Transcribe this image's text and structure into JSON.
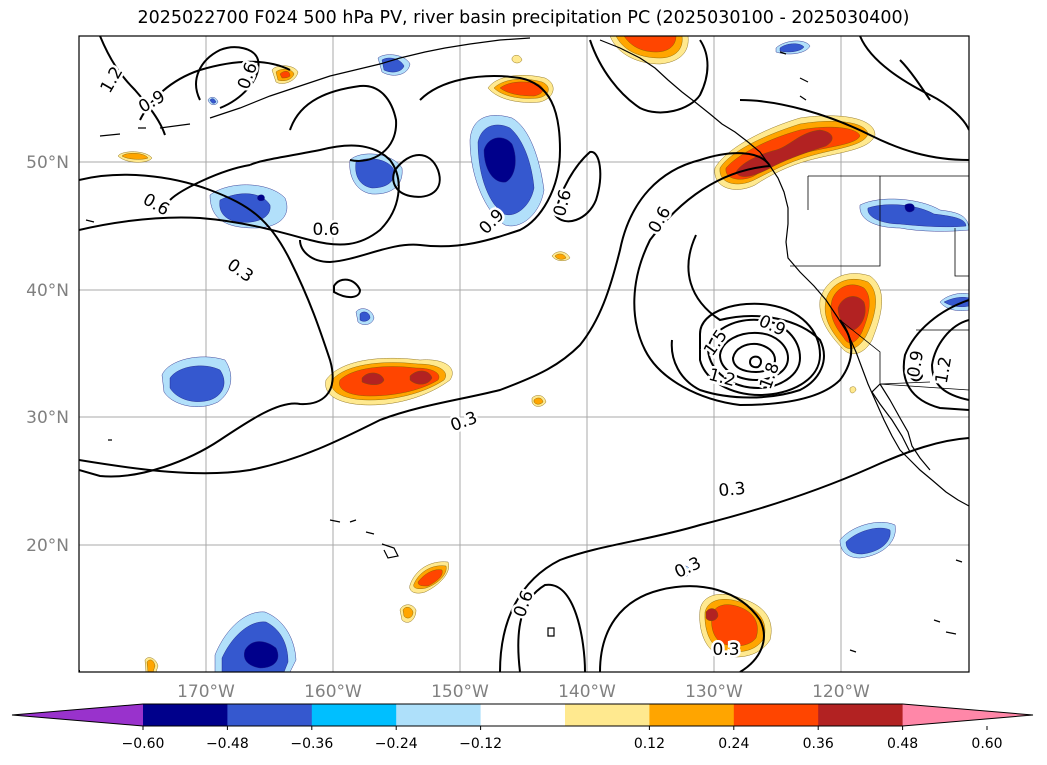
{
  "title": "2025022700 F024 500 hPa PV, river basin precipitation PC (2025030100 - 2025030400)",
  "map": {
    "lat_labels": [
      "50°N",
      "40°N",
      "30°N",
      "20°N"
    ],
    "lon_labels": [
      "170°W",
      "160°W",
      "150°W",
      "140°W",
      "130°W",
      "120°W"
    ],
    "pv_contour_labels": [
      {
        "text": "1.2"
      },
      {
        "text": "0.9"
      },
      {
        "text": "0.6"
      },
      {
        "text": "0.6"
      },
      {
        "text": "0.6"
      },
      {
        "text": "0.3"
      },
      {
        "text": "0.6"
      },
      {
        "text": "0.9"
      },
      {
        "text": "0.3"
      },
      {
        "text": "0.6"
      },
      {
        "text": "0.9"
      },
      {
        "text": "1.5"
      },
      {
        "text": "1.2"
      },
      {
        "text": "1.8"
      },
      {
        "text": "0.3"
      },
      {
        "text": "0.3"
      },
      {
        "text": "0.3"
      },
      {
        "text": "0.6"
      },
      {
        "text": "0.3"
      },
      {
        "text": "0.9"
      },
      {
        "text": "1.2"
      }
    ],
    "colors": {
      "positive_strong": "#b22222",
      "positive_mid": "#ff4500",
      "positive_weak": "#ffa500",
      "positive_edge": "#ffe98f",
      "negative_strong": "#00008b",
      "negative_mid": "#3558cf",
      "negative_weak": "#00bfff",
      "negative_edge": "#b2e0fa",
      "gridline": "#a8a8a8",
      "axis_label": "#808080"
    }
  },
  "colorbar": {
    "ticks": [
      "−0.60",
      "−0.48",
      "−0.36",
      "−0.24",
      "−0.12",
      "0.12",
      "0.24",
      "0.36",
      "0.48",
      "0.60"
    ],
    "colors": [
      "#9932cc",
      "#00008b",
      "#3558cf",
      "#00bfff",
      "#aee0fa",
      "#ffffff",
      "#ffe98f",
      "#ffa500",
      "#ff4500",
      "#b22222",
      "#ff87a8"
    ]
  }
}
